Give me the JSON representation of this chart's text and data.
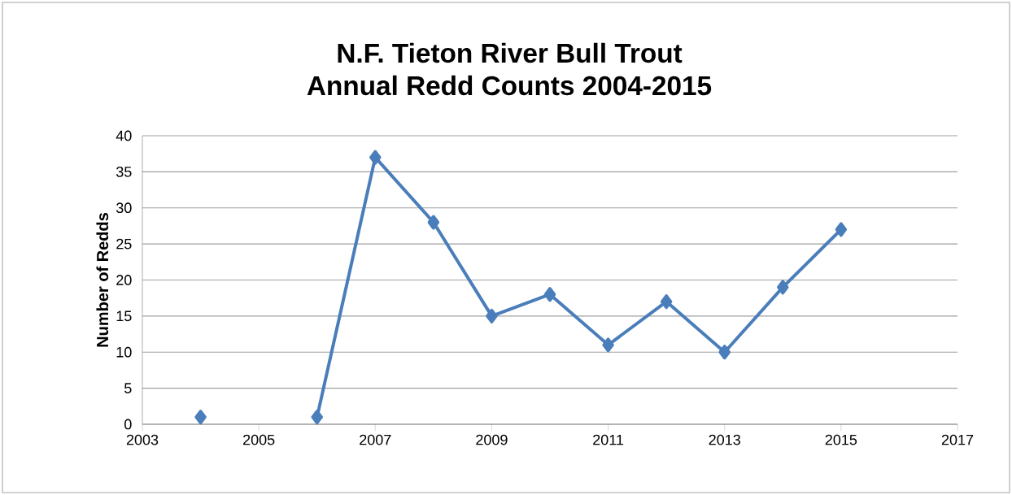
{
  "chart_data": {
    "type": "line",
    "title": "N.F. Tieton River  Bull Trout",
    "subtitle": "Annual Redd Counts 2004-2015",
    "ylabel": "Number of Redds",
    "x": [
      2004,
      2005,
      2006,
      2007,
      2008,
      2009,
      2010,
      2011,
      2012,
      2013,
      2014,
      2015
    ],
    "values": [
      1,
      null,
      1,
      37,
      28,
      15,
      18,
      11,
      17,
      10,
      19,
      27
    ],
    "color": "#4a7ebb",
    "marker": "diamond",
    "line_style": "solid",
    "xlim": [
      2003,
      2017
    ],
    "xticks": [
      2003,
      2005,
      2007,
      2009,
      2011,
      2013,
      2015,
      2017
    ],
    "ylim": [
      0,
      40
    ],
    "yticks": [
      0,
      5,
      10,
      15,
      20,
      25,
      30,
      35,
      40
    ],
    "grid": "y"
  }
}
